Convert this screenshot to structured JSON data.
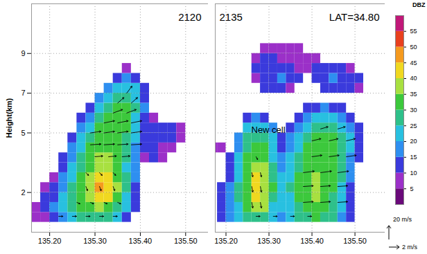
{
  "chart_data": [
    {
      "type": "heatmap",
      "title": "2120",
      "y_label": "Height(km)",
      "xlim": [
        135.16,
        135.55
      ],
      "xticks": [
        {
          "value": 135.2,
          "label": "135.20"
        },
        {
          "value": 135.3,
          "label": "135.30"
        },
        {
          "value": 135.4,
          "label": "135.40"
        },
        {
          "value": 135.5,
          "label": "135.50"
        }
      ],
      "ylim": [
        0,
        11.5
      ],
      "yticks": [
        2,
        5,
        7,
        9
      ],
      "grid": true,
      "cells": {
        "x": [
          135.17,
          135.19,
          135.21,
          135.23,
          135.25,
          135.27,
          135.29,
          135.31,
          135.33,
          135.35,
          135.37,
          135.39,
          135.41,
          135.43,
          135.45,
          135.47,
          135.49,
          135.51,
          135.53
        ],
        "y": [
          0.75,
          1.25,
          1.75,
          2.25,
          2.75,
          3.25,
          3.75,
          4.25,
          4.75,
          5.25,
          5.75,
          6.25,
          6.75,
          7.25,
          7.75,
          8.25,
          8.75,
          9.25
        ],
        "dbz": [
          [
            8,
            8,
            12,
            18,
            22,
            25,
            27,
            28,
            26,
            20,
            12,
            null,
            null,
            null,
            null,
            null,
            null,
            null,
            null
          ],
          [
            8,
            10,
            15,
            20,
            25,
            30,
            32,
            35,
            33,
            28,
            20,
            10,
            null,
            null,
            null,
            null,
            null,
            null,
            null
          ],
          [
            null,
            10,
            12,
            20,
            26,
            32,
            36,
            44,
            43,
            34,
            24,
            12,
            null,
            null,
            null,
            null,
            null,
            null,
            null
          ],
          [
            null,
            8,
            10,
            18,
            25,
            32,
            37,
            45,
            42,
            35,
            25,
            14,
            null,
            null,
            null,
            null,
            null,
            null,
            null
          ],
          [
            null,
            null,
            8,
            15,
            24,
            30,
            36,
            42,
            40,
            34,
            25,
            15,
            null,
            null,
            null,
            null,
            null,
            null,
            null
          ],
          [
            null,
            null,
            null,
            12,
            20,
            28,
            34,
            37,
            36,
            32,
            24,
            15,
            null,
            null,
            null,
            null,
            null,
            null,
            null
          ],
          [
            null,
            null,
            null,
            10,
            18,
            26,
            32,
            35,
            35,
            33,
            25,
            15,
            8,
            10,
            8,
            null,
            null,
            null,
            null
          ],
          [
            null,
            null,
            null,
            null,
            15,
            24,
            30,
            33,
            34,
            32,
            27,
            18,
            10,
            10,
            8,
            8,
            null,
            null,
            null
          ],
          [
            null,
            null,
            null,
            null,
            12,
            20,
            27,
            31,
            32,
            33,
            28,
            20,
            12,
            10,
            10,
            12,
            8,
            null,
            null
          ],
          [
            null,
            null,
            null,
            null,
            null,
            15,
            24,
            30,
            31,
            32,
            30,
            22,
            12,
            10,
            10,
            10,
            8,
            null,
            null
          ],
          [
            null,
            null,
            null,
            null,
            null,
            10,
            18,
            26,
            30,
            31,
            30,
            24,
            14,
            8,
            null,
            null,
            null,
            null,
            null
          ],
          [
            null,
            null,
            null,
            null,
            null,
            null,
            12,
            20,
            27,
            30,
            30,
            26,
            15,
            null,
            null,
            null,
            null,
            null,
            null
          ],
          [
            null,
            null,
            null,
            null,
            null,
            null,
            null,
            15,
            22,
            27,
            28,
            24,
            14,
            null,
            null,
            null,
            null,
            null,
            null
          ],
          [
            null,
            null,
            null,
            null,
            null,
            null,
            null,
            null,
            15,
            22,
            24,
            20,
            12,
            null,
            null,
            null,
            null,
            null,
            null
          ],
          [
            null,
            null,
            null,
            null,
            null,
            null,
            null,
            null,
            null,
            10,
            15,
            12,
            null,
            null,
            null,
            null,
            null,
            null,
            null
          ],
          [
            null,
            null,
            null,
            null,
            null,
            null,
            null,
            null,
            null,
            null,
            8,
            null,
            null,
            null,
            null,
            null,
            null,
            null,
            null
          ],
          [
            null,
            null,
            null,
            null,
            null,
            null,
            null,
            null,
            null,
            null,
            null,
            null,
            null,
            null,
            null,
            null,
            null,
            null,
            null
          ],
          [
            null,
            null,
            null,
            null,
            null,
            null,
            null,
            null,
            null,
            null,
            null,
            null,
            null,
            null,
            null,
            null,
            null,
            null,
            null
          ]
        ]
      },
      "wind": {
        "x": [
          135.22,
          135.25,
          135.28,
          135.31,
          135.34,
          135.26,
          135.29,
          135.32,
          135.35,
          135.28,
          135.31,
          135.34,
          135.28,
          135.31,
          135.34,
          135.3,
          135.33,
          135.36,
          135.29,
          135.32,
          135.35,
          135.38,
          135.29,
          135.32,
          135.35,
          135.38,
          135.32,
          135.35,
          135.38,
          135.34,
          135.37,
          135.35,
          135.38,
          135.37
        ],
        "y": [
          0.8,
          0.8,
          0.8,
          0.8,
          0.8,
          1.5,
          1.5,
          1.5,
          1.5,
          2.3,
          2.3,
          2.3,
          3.0,
          3.0,
          3.0,
          3.8,
          3.8,
          3.8,
          4.4,
          4.4,
          4.4,
          4.4,
          5.0,
          5.0,
          5.0,
          5.0,
          5.5,
          5.5,
          5.5,
          6.0,
          6.0,
          6.5,
          6.5,
          7.0
        ],
        "u": [
          0.8,
          0.8,
          0.8,
          0.8,
          0.8,
          0.6,
          0.6,
          0.6,
          0.6,
          0.3,
          0.3,
          0.3,
          0.5,
          0.5,
          0.5,
          1.5,
          1.5,
          1.5,
          2,
          2,
          2,
          2,
          2,
          2,
          2,
          2,
          2,
          2,
          2,
          1.8,
          1.8,
          1.2,
          1.2,
          1
        ],
        "w": [
          0,
          0,
          0,
          0,
          0,
          -2,
          -2,
          -2,
          -2,
          -6,
          -6,
          -6,
          -4,
          -4,
          -4,
          1,
          1,
          1,
          1,
          1,
          1,
          1,
          2,
          2,
          2,
          2,
          3,
          3,
          3,
          5,
          5,
          8,
          8,
          10
        ]
      }
    },
    {
      "type": "heatmap",
      "title": "2135",
      "subtitle": "LAT=34.80",
      "annotations": [
        "New cell"
      ],
      "tick_labels": "x",
      "xlim": [
        135.175,
        135.57
      ],
      "xticks": [
        {
          "value": 135.2,
          "label": "135.20"
        },
        {
          "value": 135.3,
          "label": "135.30"
        },
        {
          "value": 135.4,
          "label": "135.40"
        },
        {
          "value": 135.5,
          "label": "135.50"
        }
      ],
      "ylim": [
        0,
        11.5
      ],
      "yticks": [
        2,
        5,
        7,
        9
      ],
      "grid": true,
      "cells": {
        "x": [
          135.17,
          135.19,
          135.21,
          135.23,
          135.25,
          135.27,
          135.29,
          135.31,
          135.33,
          135.35,
          135.37,
          135.39,
          135.41,
          135.43,
          135.45,
          135.47,
          135.49,
          135.51,
          135.53
        ],
        "y": [
          0.75,
          1.25,
          1.75,
          2.25,
          2.75,
          3.25,
          3.75,
          4.25,
          4.75,
          5.25,
          5.75,
          6.25,
          6.75,
          7.25,
          7.75,
          8.25,
          8.75,
          9.25
        ],
        "dbz": [
          [
            null,
            10,
            15,
            20,
            25,
            28,
            25,
            20,
            18,
            20,
            25,
            28,
            30,
            28,
            25,
            18,
            10,
            null,
            null
          ],
          [
            null,
            12,
            18,
            24,
            30,
            36,
            35,
            24,
            20,
            22,
            28,
            32,
            33,
            30,
            27,
            20,
            12,
            null,
            null
          ],
          [
            null,
            12,
            18,
            26,
            33,
            40,
            38,
            28,
            22,
            24,
            30,
            34,
            35,
            32,
            28,
            22,
            12,
            null,
            null
          ],
          [
            null,
            10,
            16,
            26,
            34,
            42,
            39,
            30,
            22,
            25,
            30,
            34,
            35,
            33,
            30,
            24,
            14,
            null,
            null
          ],
          [
            null,
            null,
            14,
            24,
            33,
            40,
            37,
            28,
            20,
            24,
            30,
            33,
            35,
            33,
            31,
            25,
            15,
            null,
            null
          ],
          [
            null,
            null,
            12,
            22,
            32,
            37,
            35,
            26,
            18,
            22,
            28,
            32,
            34,
            33,
            32,
            26,
            16,
            null,
            null
          ],
          [
            null,
            null,
            10,
            20,
            30,
            33,
            32,
            24,
            15,
            20,
            26,
            31,
            33,
            33,
            32,
            27,
            18,
            10,
            null
          ],
          [
            8,
            8,
            null,
            18,
            28,
            30,
            30,
            22,
            12,
            18,
            24,
            30,
            32,
            32,
            31,
            28,
            20,
            12,
            null
          ],
          [
            null,
            null,
            null,
            15,
            25,
            28,
            28,
            20,
            10,
            15,
            22,
            28,
            30,
            31,
            30,
            27,
            20,
            12,
            null
          ],
          [
            null,
            null,
            null,
            null,
            20,
            24,
            22,
            15,
            null,
            12,
            18,
            24,
            27,
            29,
            28,
            24,
            18,
            10,
            null
          ],
          [
            null,
            null,
            null,
            null,
            12,
            15,
            12,
            null,
            null,
            null,
            12,
            18,
            22,
            24,
            22,
            18,
            12,
            null,
            null
          ],
          [
            null,
            null,
            null,
            null,
            null,
            null,
            null,
            null,
            null,
            null,
            null,
            10,
            14,
            15,
            12,
            10,
            null,
            null,
            null
          ],
          [
            null,
            null,
            null,
            null,
            null,
            null,
            null,
            null,
            null,
            null,
            null,
            null,
            null,
            null,
            null,
            null,
            null,
            null,
            null
          ],
          [
            null,
            null,
            null,
            null,
            null,
            null,
            10,
            12,
            12,
            8,
            null,
            null,
            null,
            10,
            14,
            12,
            10,
            8,
            null
          ],
          [
            null,
            null,
            null,
            null,
            null,
            8,
            12,
            14,
            15,
            12,
            10,
            null,
            10,
            14,
            16,
            14,
            12,
            10,
            null
          ],
          [
            null,
            null,
            null,
            null,
            null,
            10,
            12,
            12,
            10,
            10,
            8,
            8,
            10,
            12,
            12,
            10,
            8,
            null,
            null
          ],
          [
            null,
            null,
            null,
            null,
            null,
            8,
            10,
            10,
            8,
            8,
            8,
            8,
            8,
            null,
            null,
            null,
            null,
            null,
            null
          ],
          [
            null,
            null,
            null,
            null,
            null,
            null,
            8,
            8,
            8,
            8,
            8,
            null,
            null,
            null,
            null,
            null,
            null,
            null,
            null
          ]
        ]
      },
      "wind": {
        "x": [
          135.27,
          135.31,
          135.35,
          135.39,
          135.26,
          135.28,
          135.38,
          135.42,
          135.46,
          135.26,
          135.28,
          135.38,
          135.42,
          135.46,
          135.26,
          135.28,
          135.38,
          135.42,
          135.46,
          135.27,
          135.4,
          135.44,
          135.48,
          135.4,
          135.44,
          135.48,
          135.42,
          135.46
        ],
        "y": [
          0.8,
          0.8,
          0.8,
          0.8,
          1.5,
          1.5,
          1.5,
          1.5,
          1.5,
          2.3,
          2.3,
          2.3,
          2.3,
          2.3,
          3.0,
          3.0,
          3.0,
          3.0,
          3.0,
          3.8,
          3.8,
          3.8,
          3.8,
          4.6,
          4.6,
          4.6,
          5.2,
          5.2
        ],
        "u": [
          0.8,
          0.8,
          0.8,
          0.8,
          0.2,
          0.2,
          2,
          2,
          2,
          0.2,
          0.2,
          2,
          2,
          2,
          0.2,
          0.2,
          2.2,
          2.2,
          2.2,
          0.3,
          2,
          2,
          2,
          1.8,
          1.8,
          1.8,
          1.5,
          1.5
        ],
        "w": [
          0,
          0,
          0,
          0,
          -8,
          -8,
          1,
          1,
          1,
          -8,
          -8,
          1,
          1,
          1,
          -6,
          -6,
          2,
          2,
          2,
          -4,
          2,
          2,
          2,
          3,
          3,
          3,
          3,
          3
        ]
      },
      "colorbar": {
        "label": "DBZ",
        "range": [
          0,
          60
        ],
        "ticks": [
          5,
          10,
          15,
          20,
          25,
          30,
          35,
          40,
          45,
          50,
          55
        ],
        "colors": [
          "#6a0a7a",
          "#9b30c8",
          "#3a3adc",
          "#2e8ff0",
          "#28c0e0",
          "#2ec08a",
          "#3cc83c",
          "#a8e040",
          "#f0d820",
          "#f59a1e",
          "#e8401e",
          "#c01878"
        ]
      },
      "reference_vectors": [
        {
          "label": "20 m/s",
          "w": 20
        },
        {
          "label": "2 m/s",
          "u": 2
        }
      ]
    }
  ]
}
